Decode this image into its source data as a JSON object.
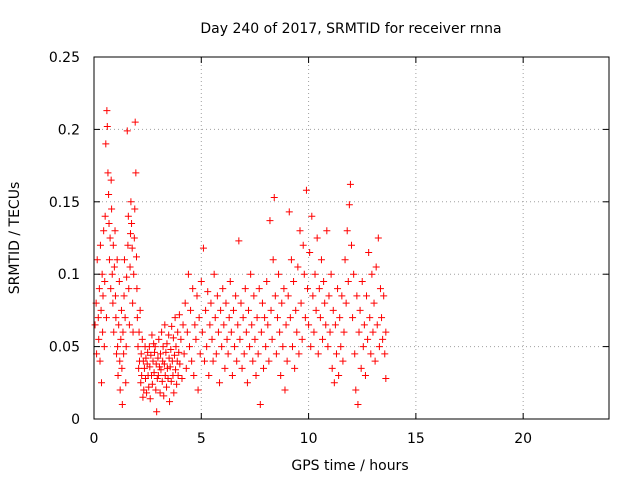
{
  "chart_data": {
    "type": "scatter",
    "title": "Day 240 of 2017, SRMTID for receiver rnna",
    "xlabel": "GPS time / hours",
    "ylabel": "SRMTID / TECUs",
    "xlim": [
      0,
      24
    ],
    "ylim": [
      0,
      0.25
    ],
    "xticks": [
      0,
      5,
      10,
      15,
      20
    ],
    "xtick_labels": [
      "0",
      "5",
      "10",
      "15",
      "20"
    ],
    "yticks": [
      0,
      0.05,
      0.1,
      0.15,
      0.2,
      0.25
    ],
    "ytick_labels": [
      "0",
      "0.05",
      "0.1",
      "0.15",
      "0.2",
      "0.25"
    ],
    "grid": true,
    "marker": "plus",
    "color": "#ff0000",
    "points": [
      [
        0.05,
        0.065
      ],
      [
        0.1,
        0.08
      ],
      [
        0.12,
        0.045
      ],
      [
        0.15,
        0.11
      ],
      [
        0.2,
        0.07
      ],
      [
        0.22,
        0.055
      ],
      [
        0.25,
        0.09
      ],
      [
        0.28,
        0.04
      ],
      [
        0.3,
        0.12
      ],
      [
        0.33,
        0.075
      ],
      [
        0.35,
        0.025
      ],
      [
        0.38,
        0.1
      ],
      [
        0.4,
        0.06
      ],
      [
        0.42,
        0.085
      ],
      [
        0.45,
        0.13
      ],
      [
        0.48,
        0.05
      ],
      [
        0.5,
        0.095
      ],
      [
        0.52,
        0.14
      ],
      [
        0.55,
        0.19
      ],
      [
        0.58,
        0.07
      ],
      [
        0.6,
        0.213
      ],
      [
        0.62,
        0.202
      ],
      [
        0.65,
        0.17
      ],
      [
        0.68,
        0.155
      ],
      [
        0.7,
        0.135
      ],
      [
        0.72,
        0.11
      ],
      [
        0.75,
        0.125
      ],
      [
        0.78,
        0.09
      ],
      [
        0.8,
        0.165
      ],
      [
        0.82,
        0.145
      ],
      [
        0.85,
        0.1
      ],
      [
        0.88,
        0.08
      ],
      [
        0.9,
        0.12
      ],
      [
        0.92,
        0.06
      ],
      [
        0.95,
        0.105
      ],
      [
        0.98,
        0.13
      ],
      [
        1.0,
        0.085
      ],
      [
        1.02,
        0.07
      ],
      [
        1.05,
        0.045
      ],
      [
        1.08,
        0.11
      ],
      [
        1.1,
        0.05
      ],
      [
        1.12,
        0.03
      ],
      [
        1.15,
        0.065
      ],
      [
        1.18,
        0.095
      ],
      [
        1.2,
        0.04
      ],
      [
        1.22,
        0.02
      ],
      [
        1.25,
        0.055
      ],
      [
        1.28,
        0.075
      ],
      [
        1.3,
        0.035
      ],
      [
        1.32,
        0.01
      ],
      [
        1.35,
        0.06
      ],
      [
        1.38,
        0.045
      ],
      [
        1.4,
        0.085
      ],
      [
        1.42,
        0.11
      ],
      [
        1.45,
        0.07
      ],
      [
        1.48,
        0.025
      ],
      [
        1.5,
        0.05
      ],
      [
        1.52,
        0.098
      ],
      [
        1.55,
        0.199
      ],
      [
        1.58,
        0.12
      ],
      [
        1.6,
        0.14
      ],
      [
        1.62,
        0.09
      ],
      [
        1.65,
        0.065
      ],
      [
        1.68,
        0.105
      ],
      [
        1.7,
        0.128
      ],
      [
        1.72,
        0.15
      ],
      [
        1.75,
        0.135
      ],
      [
        1.78,
        0.118
      ],
      [
        1.8,
        0.08
      ],
      [
        1.82,
        0.06
      ],
      [
        1.85,
        0.1
      ],
      [
        1.88,
        0.125
      ],
      [
        1.9,
        0.145
      ],
      [
        1.92,
        0.205
      ],
      [
        1.95,
        0.17
      ],
      [
        1.98,
        0.112
      ],
      [
        2.0,
        0.09
      ],
      [
        2.02,
        0.07
      ],
      [
        2.05,
        0.05
      ],
      [
        2.08,
        0.035
      ],
      [
        2.1,
        0.06
      ],
      [
        2.12,
        0.04
      ],
      [
        2.15,
        0.075
      ],
      [
        2.18,
        0.025
      ],
      [
        2.2,
        0.045
      ],
      [
        2.22,
        0.03
      ],
      [
        2.25,
        0.055
      ],
      [
        2.28,
        0.015
      ],
      [
        2.3,
        0.04
      ],
      [
        2.32,
        0.02
      ],
      [
        2.35,
        0.035
      ],
      [
        2.38,
        0.05
      ],
      [
        2.4,
        0.028
      ],
      [
        2.42,
        0.042
      ],
      [
        2.45,
        0.018
      ],
      [
        2.48,
        0.038
      ],
      [
        2.5,
        0.046
      ],
      [
        2.52,
        0.03
      ],
      [
        2.55,
        0.022
      ],
      [
        2.58,
        0.05
      ],
      [
        2.6,
        0.036
      ],
      [
        2.62,
        0.014
      ],
      [
        2.65,
        0.044
      ],
      [
        2.68,
        0.03
      ],
      [
        2.7,
        0.058
      ],
      [
        2.72,
        0.024
      ],
      [
        2.75,
        0.04
      ],
      [
        2.78,
        0.052
      ],
      [
        2.8,
        0.032
      ],
      [
        2.82,
        0.046
      ],
      [
        2.85,
        0.05
      ],
      [
        2.88,
        0.02
      ],
      [
        2.9,
        0.038
      ],
      [
        2.92,
        0.005
      ],
      [
        2.95,
        0.028
      ],
      [
        2.98,
        0.042
      ],
      [
        3.0,
        0.03
      ],
      [
        3.02,
        0.055
      ],
      [
        3.05,
        0.036
      ],
      [
        3.08,
        0.018
      ],
      [
        3.1,
        0.045
      ],
      [
        3.12,
        0.034
      ],
      [
        3.15,
        0.06
      ],
      [
        3.18,
        0.026
      ],
      [
        3.2,
        0.04
      ],
      [
        3.22,
        0.05
      ],
      [
        3.25,
        0.016
      ],
      [
        3.28,
        0.038
      ],
      [
        3.3,
        0.065
      ],
      [
        3.32,
        0.03
      ],
      [
        3.35,
        0.046
      ],
      [
        3.38,
        0.022
      ],
      [
        3.4,
        0.052
      ],
      [
        3.42,
        0.035
      ],
      [
        3.45,
        0.028
      ],
      [
        3.48,
        0.058
      ],
      [
        3.5,
        0.042
      ],
      [
        3.52,
        0.012
      ],
      [
        3.55,
        0.036
      ],
      [
        3.58,
        0.048
      ],
      [
        3.6,
        0.026
      ],
      [
        3.62,
        0.064
      ],
      [
        3.65,
        0.04
      ],
      [
        3.68,
        0.03
      ],
      [
        3.7,
        0.056
      ],
      [
        3.72,
        0.018
      ],
      [
        3.75,
        0.044
      ],
      [
        3.78,
        0.07
      ],
      [
        3.8,
        0.034
      ],
      [
        3.82,
        0.05
      ],
      [
        3.85,
        0.024
      ],
      [
        3.88,
        0.04
      ],
      [
        3.9,
        0.06
      ],
      [
        3.92,
        0.03
      ],
      [
        3.95,
        0.046
      ],
      [
        3.98,
        0.072
      ],
      [
        4.0,
        0.038
      ],
      [
        4.05,
        0.055
      ],
      [
        4.1,
        0.028
      ],
      [
        4.15,
        0.065
      ],
      [
        4.2,
        0.045
      ],
      [
        4.25,
        0.08
      ],
      [
        4.3,
        0.035
      ],
      [
        4.35,
        0.06
      ],
      [
        4.4,
        0.1
      ],
      [
        4.45,
        0.05
      ],
      [
        4.5,
        0.075
      ],
      [
        4.55,
        0.04
      ],
      [
        4.6,
        0.09
      ],
      [
        4.65,
        0.03
      ],
      [
        4.7,
        0.065
      ],
      [
        4.75,
        0.055
      ],
      [
        4.8,
        0.085
      ],
      [
        4.85,
        0.02
      ],
      [
        4.9,
        0.07
      ],
      [
        4.95,
        0.045
      ],
      [
        5.0,
        0.095
      ],
      [
        5.05,
        0.06
      ],
      [
        5.1,
        0.118
      ],
      [
        5.15,
        0.04
      ],
      [
        5.2,
        0.075
      ],
      [
        5.25,
        0.05
      ],
      [
        5.3,
        0.088
      ],
      [
        5.35,
        0.03
      ],
      [
        5.4,
        0.065
      ],
      [
        5.45,
        0.08
      ],
      [
        5.5,
        0.055
      ],
      [
        5.55,
        0.04
      ],
      [
        5.6,
        0.1
      ],
      [
        5.65,
        0.07
      ],
      [
        5.7,
        0.045
      ],
      [
        5.75,
        0.085
      ],
      [
        5.8,
        0.06
      ],
      [
        5.85,
        0.025
      ],
      [
        5.9,
        0.075
      ],
      [
        5.95,
        0.05
      ],
      [
        6.0,
        0.09
      ],
      [
        6.05,
        0.065
      ],
      [
        6.1,
        0.035
      ],
      [
        6.15,
        0.08
      ],
      [
        6.2,
        0.055
      ],
      [
        6.25,
        0.045
      ],
      [
        6.3,
        0.07
      ],
      [
        6.35,
        0.095
      ],
      [
        6.4,
        0.06
      ],
      [
        6.45,
        0.03
      ],
      [
        6.5,
        0.075
      ],
      [
        6.55,
        0.05
      ],
      [
        6.6,
        0.085
      ],
      [
        6.65,
        0.04
      ],
      [
        6.7,
        0.065
      ],
      [
        6.75,
        0.123
      ],
      [
        6.8,
        0.055
      ],
      [
        6.85,
        0.08
      ],
      [
        6.9,
        0.035
      ],
      [
        6.95,
        0.07
      ],
      [
        7.0,
        0.045
      ],
      [
        7.05,
        0.09
      ],
      [
        7.1,
        0.06
      ],
      [
        7.15,
        0.025
      ],
      [
        7.2,
        0.075
      ],
      [
        7.25,
        0.05
      ],
      [
        7.3,
        0.1
      ],
      [
        7.35,
        0.065
      ],
      [
        7.4,
        0.04
      ],
      [
        7.45,
        0.085
      ],
      [
        7.5,
        0.055
      ],
      [
        7.55,
        0.03
      ],
      [
        7.6,
        0.07
      ],
      [
        7.65,
        0.045
      ],
      [
        7.7,
        0.09
      ],
      [
        7.75,
        0.01
      ],
      [
        7.8,
        0.06
      ],
      [
        7.85,
        0.08
      ],
      [
        7.9,
        0.035
      ],
      [
        7.95,
        0.07
      ],
      [
        8.0,
        0.05
      ],
      [
        8.05,
        0.095
      ],
      [
        8.1,
        0.065
      ],
      [
        8.15,
        0.04
      ],
      [
        8.2,
        0.137
      ],
      [
        8.25,
        0.075
      ],
      [
        8.3,
        0.055
      ],
      [
        8.35,
        0.11
      ],
      [
        8.4,
        0.153
      ],
      [
        8.45,
        0.085
      ],
      [
        8.5,
        0.045
      ],
      [
        8.55,
        0.07
      ],
      [
        8.6,
        0.1
      ],
      [
        8.65,
        0.06
      ],
      [
        8.7,
        0.03
      ],
      [
        8.75,
        0.08
      ],
      [
        8.8,
        0.05
      ],
      [
        8.85,
        0.09
      ],
      [
        8.9,
        0.02
      ],
      [
        8.95,
        0.065
      ],
      [
        9.0,
        0.04
      ],
      [
        9.05,
        0.085
      ],
      [
        9.1,
        0.143
      ],
      [
        9.15,
        0.07
      ],
      [
        9.2,
        0.11
      ],
      [
        9.25,
        0.05
      ],
      [
        9.3,
        0.095
      ],
      [
        9.35,
        0.035
      ],
      [
        9.4,
        0.075
      ],
      [
        9.45,
        0.06
      ],
      [
        9.5,
        0.105
      ],
      [
        9.55,
        0.045
      ],
      [
        9.6,
        0.13
      ],
      [
        9.65,
        0.08
      ],
      [
        9.7,
        0.055
      ],
      [
        9.75,
        0.12
      ],
      [
        9.8,
        0.1
      ],
      [
        9.85,
        0.07
      ],
      [
        9.9,
        0.158
      ],
      [
        9.95,
        0.09
      ],
      [
        10.0,
        0.065
      ],
      [
        10.05,
        0.115
      ],
      [
        10.1,
        0.05
      ],
      [
        10.15,
        0.14
      ],
      [
        10.2,
        0.085
      ],
      [
        10.25,
        0.06
      ],
      [
        10.3,
        0.1
      ],
      [
        10.35,
        0.075
      ],
      [
        10.4,
        0.125
      ],
      [
        10.45,
        0.045
      ],
      [
        10.5,
        0.09
      ],
      [
        10.55,
        0.07
      ],
      [
        10.6,
        0.11
      ],
      [
        10.65,
        0.055
      ],
      [
        10.7,
        0.095
      ],
      [
        10.75,
        0.08
      ],
      [
        10.8,
        0.065
      ],
      [
        10.85,
        0.13
      ],
      [
        10.9,
        0.05
      ],
      [
        10.95,
        0.085
      ],
      [
        11.0,
        0.06
      ],
      [
        11.05,
        0.1
      ],
      [
        11.1,
        0.035
      ],
      [
        11.15,
        0.075
      ],
      [
        11.2,
        0.025
      ],
      [
        11.25,
        0.065
      ],
      [
        11.3,
        0.045
      ],
      [
        11.35,
        0.09
      ],
      [
        11.4,
        0.03
      ],
      [
        11.45,
        0.07
      ],
      [
        11.5,
        0.05
      ],
      [
        11.55,
        0.085
      ],
      [
        11.6,
        0.04
      ],
      [
        11.65,
        0.06
      ],
      [
        11.7,
        0.11
      ],
      [
        11.75,
        0.08
      ],
      [
        11.8,
        0.13
      ],
      [
        11.85,
        0.095
      ],
      [
        11.9,
        0.148
      ],
      [
        11.95,
        0.162
      ],
      [
        12.0,
        0.12
      ],
      [
        12.05,
        0.07
      ],
      [
        12.1,
        0.1
      ],
      [
        12.15,
        0.045
      ],
      [
        12.2,
        0.02
      ],
      [
        12.25,
        0.085
      ],
      [
        12.3,
        0.01
      ],
      [
        12.35,
        0.06
      ],
      [
        12.4,
        0.075
      ],
      [
        12.45,
        0.035
      ],
      [
        12.5,
        0.095
      ],
      [
        12.55,
        0.05
      ],
      [
        12.6,
        0.065
      ],
      [
        12.65,
        0.03
      ],
      [
        12.7,
        0.085
      ],
      [
        12.75,
        0.055
      ],
      [
        12.8,
        0.115
      ],
      [
        12.85,
        0.07
      ],
      [
        12.9,
        0.045
      ],
      [
        12.95,
        0.1
      ],
      [
        13.0,
        0.06
      ],
      [
        13.05,
        0.08
      ],
      [
        13.1,
        0.04
      ],
      [
        13.15,
        0.105
      ],
      [
        13.2,
        0.065
      ],
      [
        13.25,
        0.125
      ],
      [
        13.3,
        0.05
      ],
      [
        13.35,
        0.09
      ],
      [
        13.4,
        0.07
      ],
      [
        13.45,
        0.055
      ],
      [
        13.5,
        0.085
      ],
      [
        13.55,
        0.045
      ],
      [
        13.6,
        0.06
      ],
      [
        13.6,
        0.028
      ]
    ]
  }
}
